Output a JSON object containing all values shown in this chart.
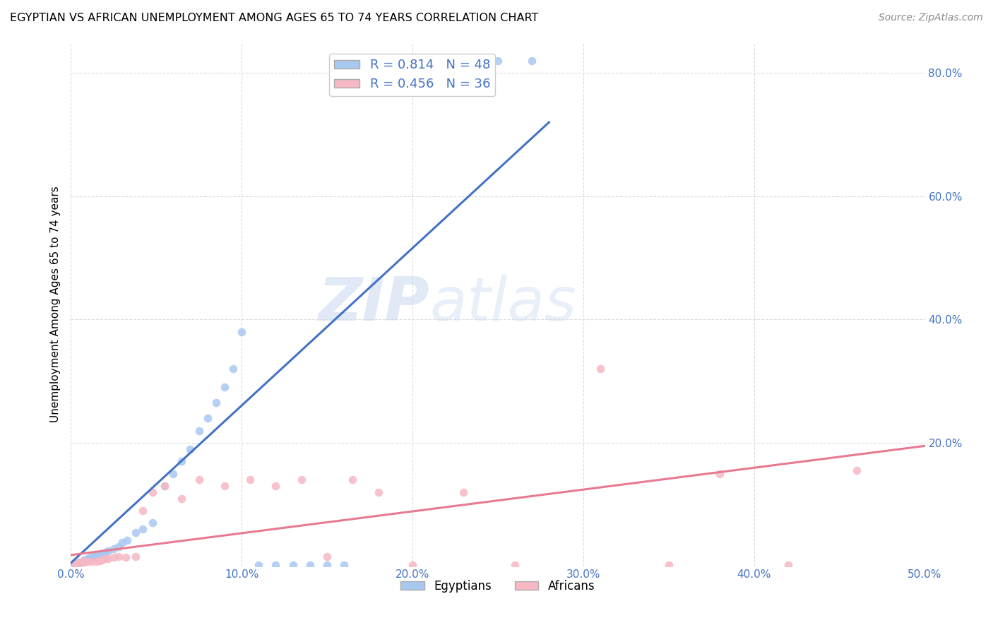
{
  "title": "EGYPTIAN VS AFRICAN UNEMPLOYMENT AMONG AGES 65 TO 74 YEARS CORRELATION CHART",
  "source": "Source: ZipAtlas.com",
  "ylabel": "Unemployment Among Ages 65 to 74 years",
  "xlim": [
    0.0,
    0.5
  ],
  "ylim": [
    0.0,
    0.85
  ],
  "xticks": [
    0.0,
    0.1,
    0.2,
    0.3,
    0.4,
    0.5
  ],
  "yticks": [
    0.0,
    0.2,
    0.4,
    0.6,
    0.8
  ],
  "xticklabels": [
    "0.0%",
    "10.0%",
    "20.0%",
    "30.0%",
    "40.0%",
    "50.0%"
  ],
  "yticklabels": [
    "",
    "20.0%",
    "40.0%",
    "60.0%",
    "80.0%"
  ],
  "egyptian_color": "#A8C8F0",
  "african_color": "#F5B8C4",
  "egyptian_line_color": "#4472C4",
  "african_line_color": "#E87A90",
  "R_egyptian": 0.814,
  "N_egyptian": 48,
  "R_african": 0.456,
  "N_african": 36,
  "legend_label_1": "Egyptians",
  "legend_label_2": "Africans",
  "watermark_zip": "ZIP",
  "watermark_atlas": "atlas",
  "background_color": "#FFFFFF",
  "tick_color": "#4472C4",
  "egyptian_scatter_x": [
    0.002,
    0.003,
    0.004,
    0.005,
    0.005,
    0.006,
    0.007,
    0.007,
    0.008,
    0.008,
    0.009,
    0.01,
    0.01,
    0.011,
    0.012,
    0.013,
    0.014,
    0.015,
    0.016,
    0.017,
    0.018,
    0.02,
    0.022,
    0.025,
    0.028,
    0.03,
    0.033,
    0.038,
    0.042,
    0.048,
    0.055,
    0.06,
    0.065,
    0.07,
    0.075,
    0.08,
    0.085,
    0.09,
    0.095,
    0.1,
    0.11,
    0.12,
    0.13,
    0.14,
    0.15,
    0.16,
    0.25,
    0.27
  ],
  "egyptian_scatter_y": [
    0.003,
    0.004,
    0.005,
    0.005,
    0.006,
    0.006,
    0.007,
    0.008,
    0.009,
    0.01,
    0.01,
    0.011,
    0.012,
    0.013,
    0.014,
    0.015,
    0.015,
    0.016,
    0.017,
    0.018,
    0.02,
    0.022,
    0.025,
    0.028,
    0.032,
    0.038,
    0.042,
    0.055,
    0.06,
    0.07,
    0.13,
    0.15,
    0.17,
    0.19,
    0.22,
    0.24,
    0.265,
    0.29,
    0.32,
    0.38,
    0.002,
    0.002,
    0.002,
    0.002,
    0.002,
    0.002,
    0.82,
    0.82
  ],
  "african_scatter_x": [
    0.002,
    0.004,
    0.006,
    0.007,
    0.008,
    0.01,
    0.012,
    0.015,
    0.017,
    0.018,
    0.02,
    0.022,
    0.025,
    0.028,
    0.032,
    0.038,
    0.042,
    0.048,
    0.055,
    0.065,
    0.075,
    0.09,
    0.105,
    0.12,
    0.135,
    0.15,
    0.165,
    0.18,
    0.2,
    0.23,
    0.26,
    0.31,
    0.35,
    0.38,
    0.42,
    0.46
  ],
  "african_scatter_y": [
    0.004,
    0.005,
    0.006,
    0.007,
    0.006,
    0.007,
    0.008,
    0.008,
    0.009,
    0.01,
    0.012,
    0.012,
    0.014,
    0.015,
    0.014,
    0.015,
    0.09,
    0.12,
    0.13,
    0.11,
    0.14,
    0.13,
    0.14,
    0.13,
    0.14,
    0.015,
    0.14,
    0.12,
    0.002,
    0.12,
    0.002,
    0.32,
    0.002,
    0.15,
    0.002,
    0.155
  ],
  "eg_line_x": [
    0.0,
    0.28
  ],
  "eg_line_y": [
    0.005,
    0.72
  ],
  "af_line_x": [
    0.0,
    0.5
  ],
  "af_line_y": [
    0.018,
    0.195
  ]
}
